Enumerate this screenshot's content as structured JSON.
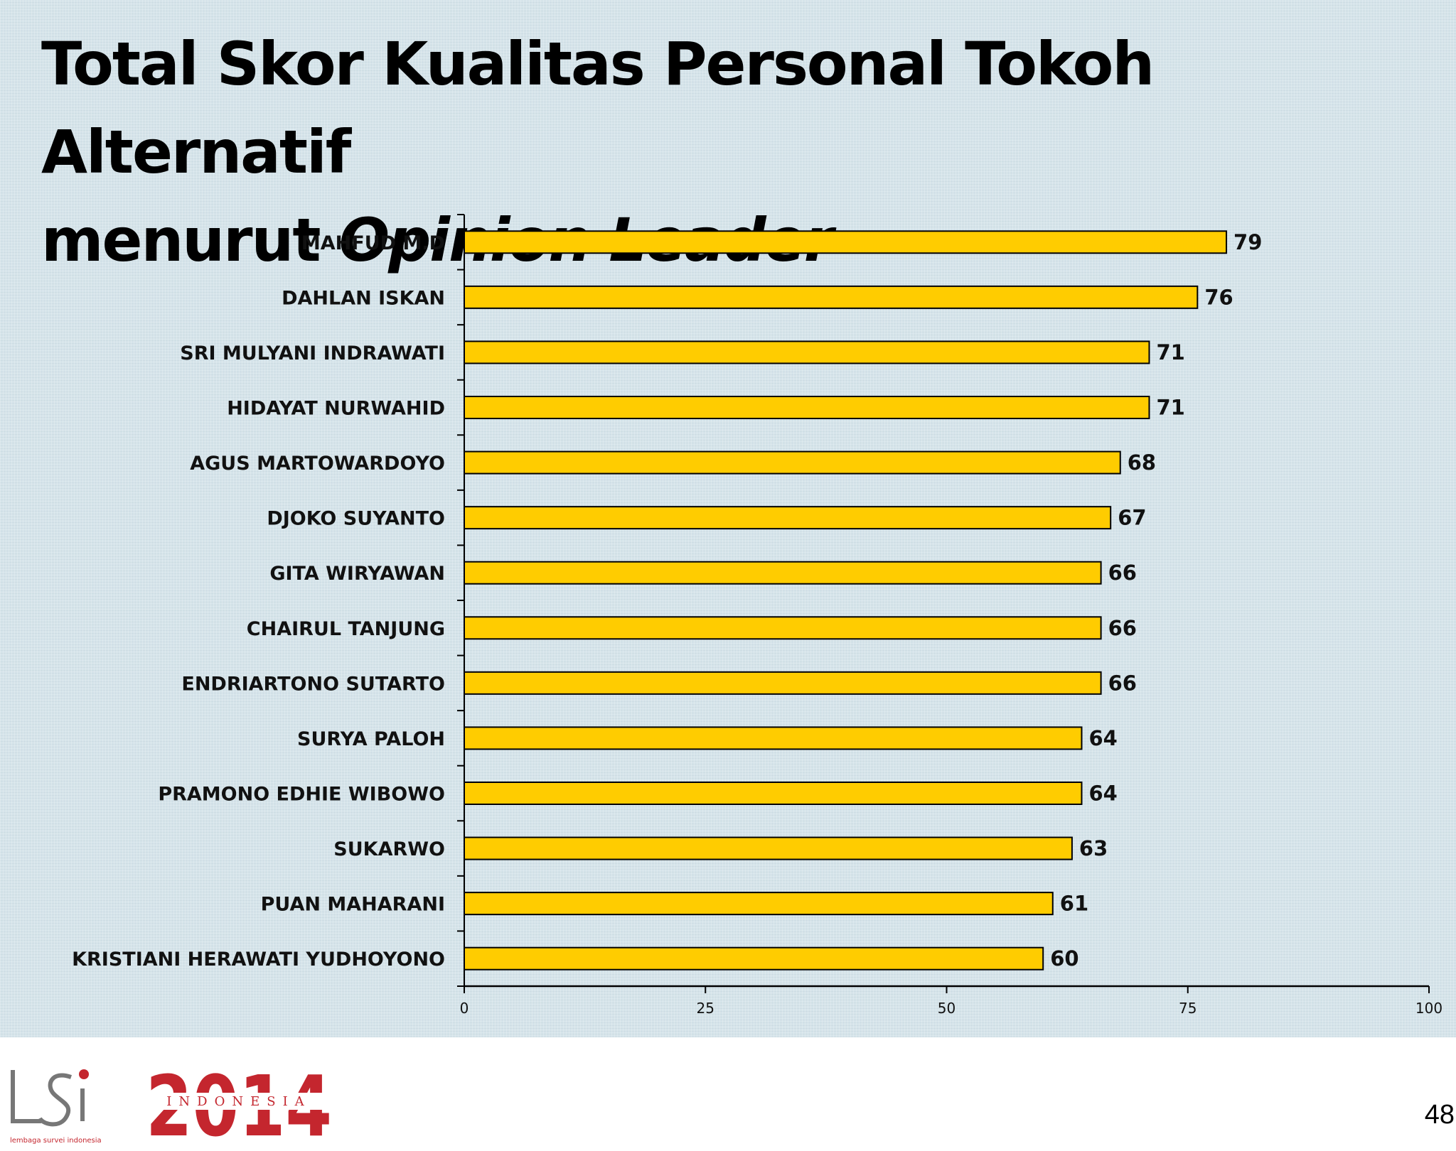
{
  "title": {
    "line1": "Total Skor Kualitas Personal Tokoh Alternatif",
    "line2_prefix": "menurut ",
    "line2_italic": "Opinion Leader"
  },
  "chart_data": {
    "type": "bar",
    "orientation": "horizontal",
    "categories": [
      "MAHFUD M.D",
      "DAHLAN ISKAN",
      "SRI MULYANI INDRAWATI",
      "HIDAYAT NURWAHID",
      "AGUS MARTOWARDOYO",
      "DJOKO SUYANTO",
      "GITA WIRYAWAN",
      "CHAIRUL TANJUNG",
      "ENDRIARTONO SUTARTO",
      "SURYA PALOH",
      "PRAMONO EDHIE WIBOWO",
      "SUKARWO",
      "PUAN MAHARANI",
      "KRISTIANI HERAWATI YUDHOYONO"
    ],
    "values": [
      79,
      76,
      71,
      71,
      68,
      67,
      66,
      66,
      66,
      64,
      64,
      63,
      61,
      60
    ],
    "value_labels": [
      "79",
      "76",
      "71",
      "71",
      "68",
      "67",
      "66",
      "66",
      "66",
      "64",
      "64",
      "63",
      "61",
      "60"
    ],
    "title": "Total Skor Kualitas Personal Tokoh Alternatif menurut Opinion Leader",
    "xlabel": "",
    "ylabel": "",
    "xlim": [
      0,
      100
    ],
    "xticks": [
      0,
      25,
      50,
      75,
      100
    ],
    "xtick_labels": [
      "0",
      "25",
      "50",
      "75",
      "100"
    ],
    "grid": false,
    "legend": "none",
    "colors": {
      "bar_fill": "#ffcc00",
      "bar_stroke": "#000000"
    }
  },
  "footer": {
    "lsi_logo_text": "LSI",
    "lsi_tagline": "lembaga survei indonesia",
    "logo_2014_year": "2014",
    "logo_2014_word": "INDONESIA",
    "brand_color": "#c4262e",
    "page_number": "48"
  }
}
